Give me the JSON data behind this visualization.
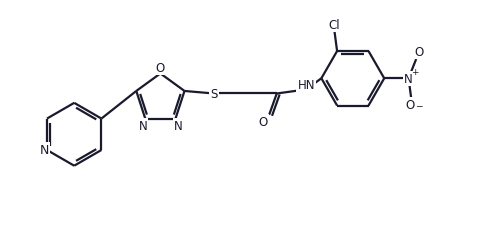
{
  "bg_color": "#ffffff",
  "line_color": "#1a1a2e",
  "line_width": 1.6,
  "font_size": 8.5,
  "figsize": [
    4.83,
    2.3
  ],
  "dpi": 100,
  "xlim": [
    0,
    9.5
  ],
  "ylim": [
    0,
    4.5
  ]
}
